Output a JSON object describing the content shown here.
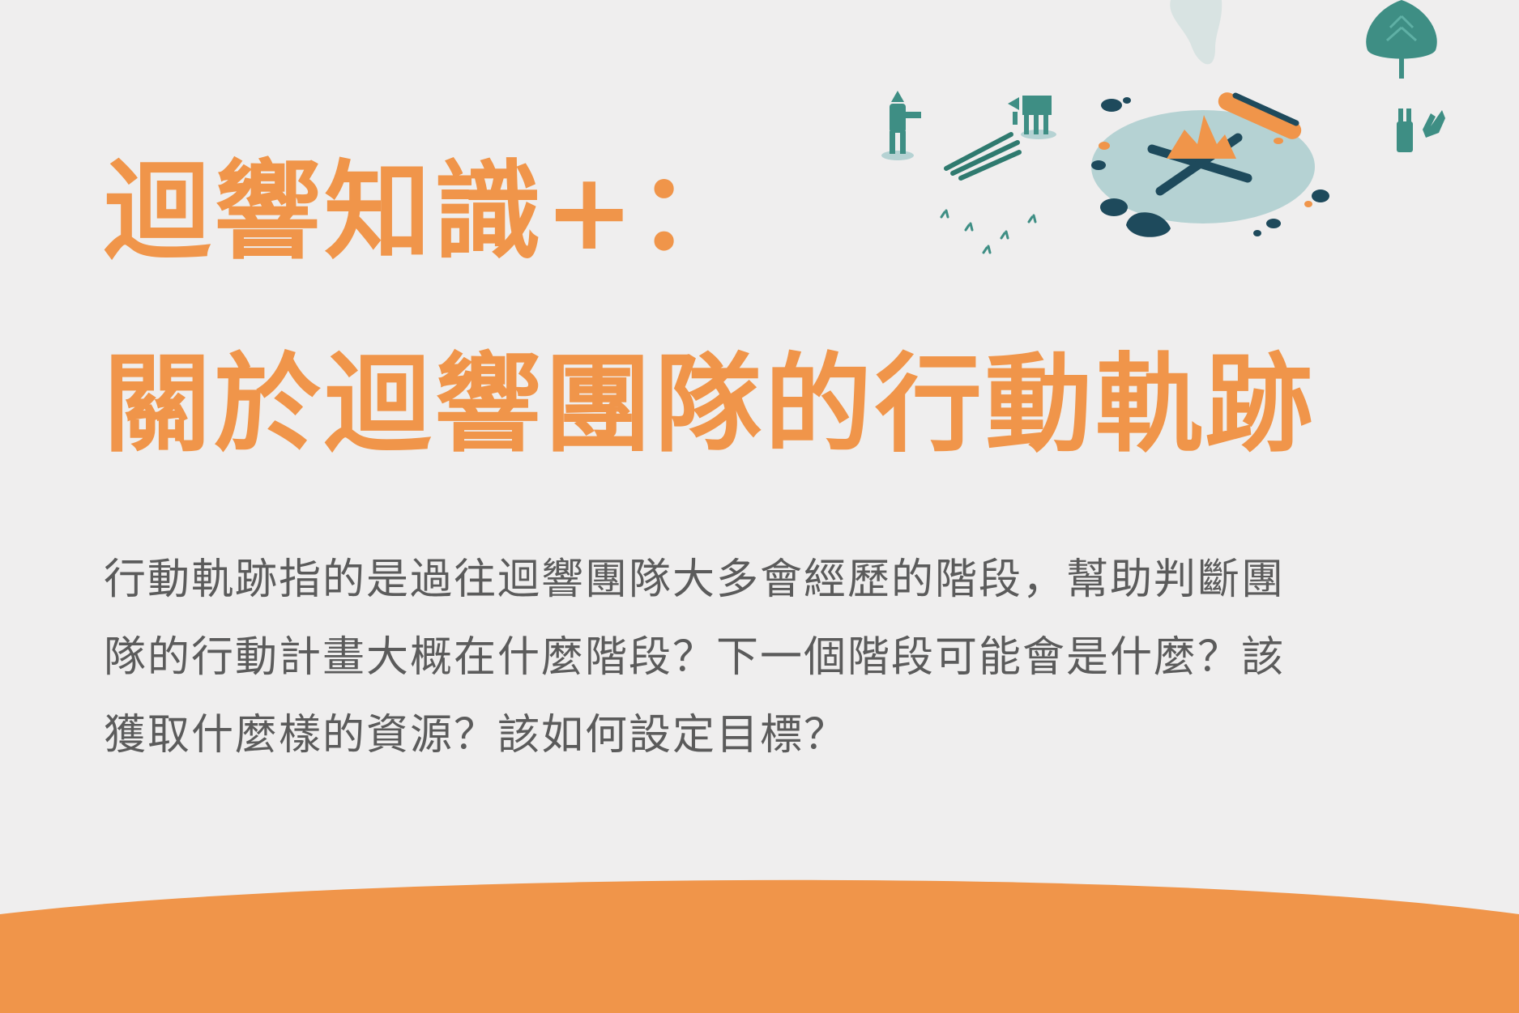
{
  "title": {
    "line1": "迴響知識+：",
    "line2": "關於迴響團隊的行動軌跡"
  },
  "body": {
    "lines": [
      "行動軌跡指的是過往迴響團隊大多會經歷的階段，幫助判斷團",
      "隊的行動計畫大概在什麼階段？下一個階段可能會是什麼？該",
      "獲取什麼樣的資源？該如何設定目標？"
    ]
  },
  "colors": {
    "background": "#efeeee",
    "accent_orange": "#f0954a",
    "body_text": "#5b5b5b",
    "teal": "#3e8e84",
    "dark_navy": "#1e4a5c",
    "pond": "#b5d2d3"
  },
  "illustration": {
    "icons": [
      "campfire-icon",
      "pond-icon",
      "tree-icon",
      "person-icon",
      "deer-icon",
      "rabbit-icon",
      "log-icon",
      "sticks-icon",
      "smoke-icon",
      "rock-icon",
      "grass-icon"
    ]
  }
}
